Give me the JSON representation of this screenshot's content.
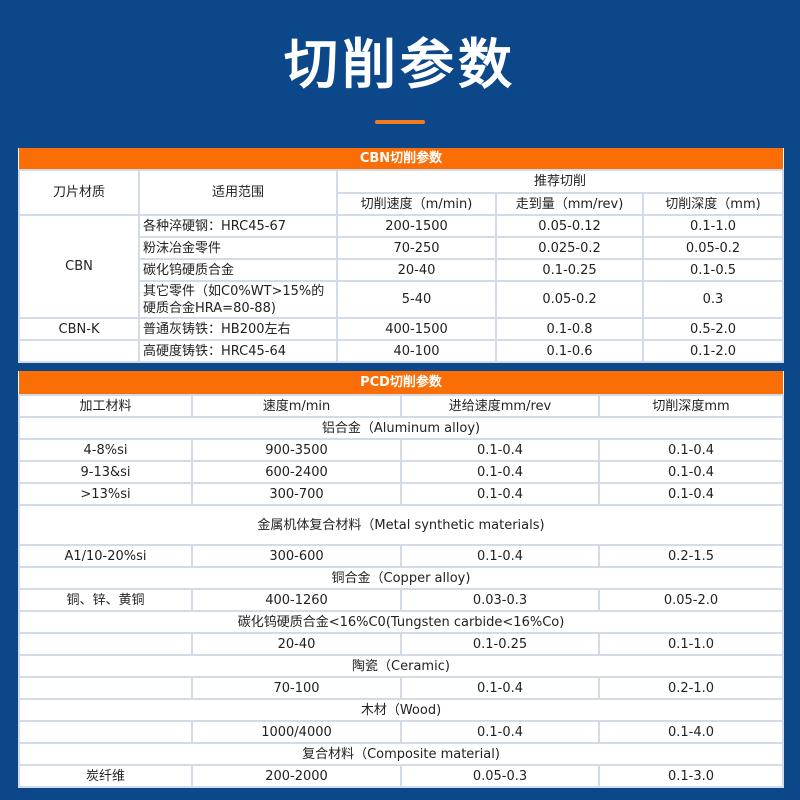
{
  "page_title": "切削参数",
  "colors": {
    "background": "#0c4889",
    "accent": "#fb6e06",
    "text": "#222222"
  },
  "cbn": {
    "title": "CBN切削参数",
    "headers": {
      "material": "刀片材质",
      "scope": "适用范围",
      "recommended": "推荐切削",
      "speed": "切削速度（m/min)",
      "feed": "走到量（mm/rev)",
      "depth": "切削深度（mm)"
    },
    "groups": [
      {
        "material": "CBN",
        "rows": [
          {
            "scope": "各种淬硬钢：HRC45-67",
            "speed": "200-1500",
            "feed": "0.05-0.12",
            "depth": "0.1-1.0"
          },
          {
            "scope": "粉沫冶金零件",
            "speed": "70-250",
            "feed": "0.025-0.2",
            "depth": "0.05-0.2"
          },
          {
            "scope": "碳化钨硬质合金",
            "speed": "20-40",
            "feed": "0.1-0.25",
            "depth": "0.1-0.5"
          },
          {
            "scope": "其它零件（如C0%WT>15%的",
            "scope2": "硬质合金HRA=80-88)",
            "speed": "5-40",
            "feed": "0.05-0.2",
            "depth": "0.3"
          }
        ]
      },
      {
        "material": "CBN-K",
        "rows": [
          {
            "scope": "普通灰铸铁：HB200左右",
            "speed": "400-1500",
            "feed": "0.1-0.8",
            "depth": "0.5-2.0"
          }
        ]
      },
      {
        "material": "",
        "rows": [
          {
            "scope": "高硬度铸铁：HRC45-64",
            "speed": "40-100",
            "feed": "0.1-0.6",
            "depth": "0.1-2.0"
          }
        ]
      }
    ]
  },
  "pcd": {
    "title": "PCD切削参数",
    "headers": [
      "加工材料",
      "速度m/min",
      "进给速度mm/rev",
      "切削深度mm"
    ],
    "sections": [
      {
        "name": "铝合金（Aluminum alloy)",
        "rows": [
          [
            "4-8%si",
            "900-3500",
            "0.1-0.4",
            "0.1-0.4"
          ],
          [
            "9-13&si",
            "600-2400",
            "0.1-0.4",
            "0.1-0.4"
          ],
          [
            ">13%si",
            "300-700",
            "0.1-0.4",
            "0.1-0.4"
          ]
        ]
      },
      {
        "name": "金属机体复合材料（Metal synthetic materials)",
        "tall": true,
        "rows": [
          [
            "A1/10-20%si",
            "300-600",
            "0.1-0.4",
            "0.2-1.5"
          ]
        ]
      },
      {
        "name": "铜合金（Copper alloy)",
        "rows": [
          [
            "铜、锌、黄铜",
            "400-1260",
            "0.03-0.3",
            "0.05-2.0"
          ]
        ]
      },
      {
        "name": "碳化钨硬质合金<16%C0(Tungsten carbide<16%Co)",
        "rows": [
          [
            "",
            "20-40",
            "0.1-0.25",
            "0.1-1.0"
          ]
        ]
      },
      {
        "name": "陶瓷（Ceramic)",
        "rows": [
          [
            "",
            "70-100",
            "0.1-0.4",
            "0.2-1.0"
          ]
        ]
      },
      {
        "name": "木材（Wood)",
        "rows": [
          [
            "",
            "1000/4000",
            "0.1-0.4",
            "0.1-4.0"
          ]
        ]
      },
      {
        "name": "复合材料（Composite material)",
        "rows": [
          [
            "炭纤维",
            "200-2000",
            "0.05-0.3",
            "0.1-3.0"
          ]
        ]
      }
    ]
  }
}
